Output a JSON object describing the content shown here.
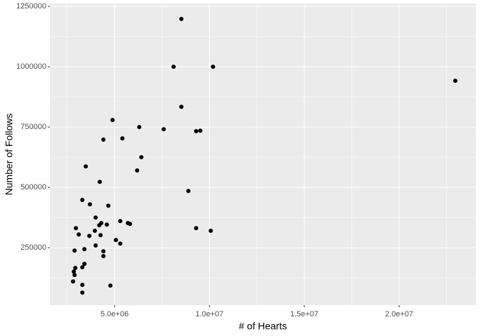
{
  "chart_data": {
    "type": "scatter",
    "x_label": "# of Hearts",
    "y_label": "Number of Follows",
    "xlim": [
      1590000,
      24040000
    ],
    "ylim": [
      12000,
      1262000
    ],
    "xticks": [
      {
        "value": 5000000,
        "label": "5.0e+06"
      },
      {
        "value": 10000000,
        "label": "1.0e+07"
      },
      {
        "value": 15000000,
        "label": "1.5e+07"
      },
      {
        "value": 20000000,
        "label": "2.0e+07"
      }
    ],
    "yticks": [
      250000,
      500000,
      750000,
      1000000,
      1250000
    ],
    "grid": true,
    "color": "#000000",
    "x": [
      8520000,
      8110000,
      10190000,
      22960000,
      8520000,
      4890000,
      6300000,
      7590000,
      9300000,
      9520000,
      5410000,
      4410000,
      6410000,
      3480000,
      6190000,
      4220000,
      8890000,
      3300000,
      3700000,
      4670000,
      4000000,
      5300000,
      5700000,
      5810000,
      4300000,
      4190000,
      4590000,
      2960000,
      9300000,
      10070000,
      3960000,
      3110000,
      3670000,
      4260000,
      5070000,
      5300000,
      4000000,
      3410000,
      2890000,
      4410000,
      4410000,
      3410000,
      2930000,
      3300000,
      2850000,
      2890000,
      2810000,
      3300000,
      4780000,
      3300000
    ],
    "values": [
      1198000,
      1000000,
      1000000,
      942000,
      834000,
      779000,
      750000,
      741000,
      733000,
      735000,
      703000,
      698000,
      625000,
      587000,
      570000,
      523000,
      485000,
      448000,
      430000,
      424000,
      375000,
      360000,
      352000,
      349000,
      352000,
      343000,
      346000,
      331000,
      331000,
      320000,
      320000,
      305000,
      299000,
      302000,
      282000,
      267000,
      259000,
      244000,
      238000,
      235000,
      215000,
      183000,
      166000,
      169000,
      151000,
      137000,
      110000,
      96000,
      93000,
      64000
    ]
  }
}
